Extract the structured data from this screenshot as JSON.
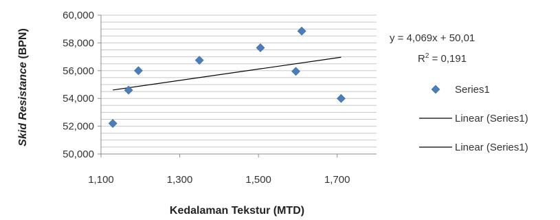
{
  "chart_data": {
    "type": "scatter",
    "xlabel": "Kedalaman Tekstur (MTD)",
    "ylabel_italic": "Skid Resistance",
    "ylabel_unit": " (BPN)",
    "xlim": [
      1.1,
      1.8
    ],
    "ylim": [
      50,
      60
    ],
    "x_ticks": [
      1.1,
      1.3,
      1.5,
      1.7
    ],
    "x_tick_labels": [
      "1,100",
      "1,300",
      "1,500",
      "1,700"
    ],
    "y_ticks": [
      50,
      52,
      54,
      56,
      58,
      60
    ],
    "y_tick_labels": [
      "50,000",
      "52,000",
      "54,000",
      "56,000",
      "58,000",
      "60,000"
    ],
    "grid": true,
    "series": [
      {
        "name": "Series1",
        "color": "#4a7ebb",
        "marker": "diamond",
        "x": [
          1.13,
          1.17,
          1.195,
          1.35,
          1.505,
          1.595,
          1.61,
          1.71
        ],
        "y": [
          52.2,
          54.6,
          56.0,
          56.75,
          57.65,
          55.95,
          58.85,
          54.0
        ]
      }
    ],
    "trendline": {
      "name": "Linear (Series1)",
      "slope": 4.069,
      "intercept": 50.01,
      "x_range": [
        1.13,
        1.71
      ],
      "equation": "y = 4,069x + 50,01",
      "r2_prefix": "R",
      "r2_sup": "2",
      "r2_value": " = 0,191",
      "color": "#000000"
    },
    "legend": {
      "placement": "right",
      "entries": [
        {
          "label": "Series1",
          "kind": "marker"
        },
        {
          "label": "Linear (Series1)",
          "kind": "line"
        },
        {
          "label": "Linear (Series1)",
          "kind": "line"
        }
      ]
    }
  }
}
